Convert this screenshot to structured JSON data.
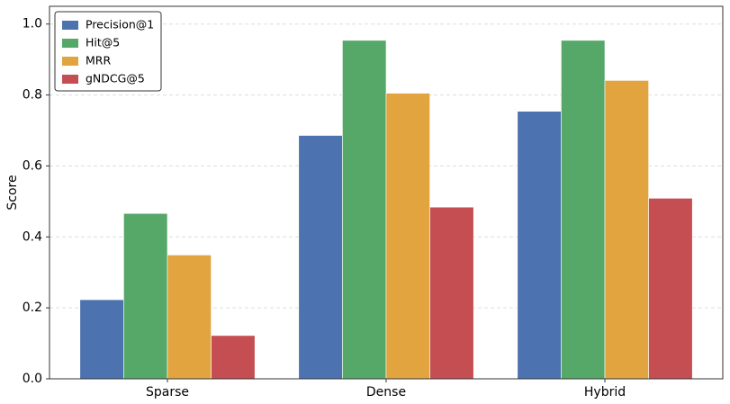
{
  "chart_data": {
    "type": "bar",
    "y_label": "Score",
    "categories": [
      "Sparse",
      "Dense",
      "Hybrid"
    ],
    "series": [
      {
        "name": "Precision@1",
        "color": "#4c72b0",
        "values": [
          0.223,
          0.686,
          0.754
        ]
      },
      {
        "name": "Hit@5",
        "color": "#55a868",
        "values": [
          0.466,
          0.954,
          0.954
        ]
      },
      {
        "name": "MRR",
        "color": "#e1a43f",
        "values": [
          0.349,
          0.805,
          0.841
        ]
      },
      {
        "name": "gNDCG@5",
        "color": "#c44e52",
        "values": [
          0.122,
          0.484,
          0.509
        ]
      }
    ],
    "ylim": [
      0,
      1.05
    ],
    "yticks": [
      {
        "value": 0,
        "label": "0.0"
      },
      0.2,
      0.4,
      0.6,
      0.8,
      {
        "value": 1,
        "label": "1.0"
      }
    ],
    "grid": true,
    "legend": "upper left"
  }
}
